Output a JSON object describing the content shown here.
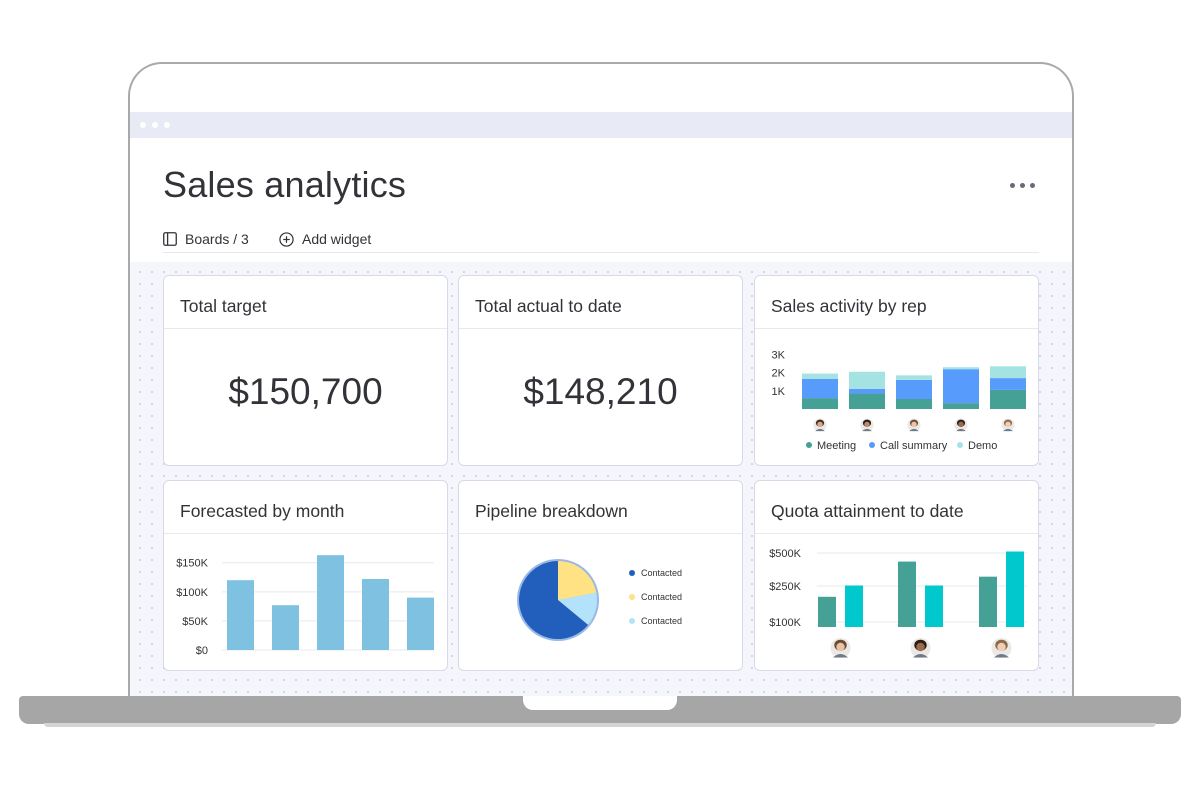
{
  "page": {
    "title": "Sales analytics",
    "toolbar": {
      "boards_label": "Boards / 3",
      "add_widget_label": "Add widget"
    }
  },
  "widgets": {
    "total_target": {
      "title": "Total target",
      "value": "$150,700"
    },
    "total_actual": {
      "title": "Total actual to date",
      "value": "$148,210"
    },
    "sales_activity": {
      "title": "Sales activity by rep"
    },
    "forecasted": {
      "title": "Forecasted by month"
    },
    "pipeline": {
      "title": "Pipeline breakdown"
    },
    "quota": {
      "title": "Quota attainment to date"
    }
  },
  "chart_data": [
    {
      "type": "bar",
      "stacked": true,
      "title": "Sales activity by rep",
      "categories": [
        "rep-1",
        "rep-2",
        "rep-3",
        "rep-4",
        "rep-5"
      ],
      "y_ticks": [
        "3K",
        "2K",
        "1K"
      ],
      "ylim": [
        0,
        3300
      ],
      "series": [
        {
          "name": "Meeting",
          "color": "#45a195",
          "values": [
            600,
            850,
            550,
            320,
            1050
          ]
        },
        {
          "name": "Call summary",
          "color": "#579bfc",
          "values": [
            1050,
            250,
            1050,
            1870,
            650
          ]
        },
        {
          "name": "Demo",
          "color": "#a5e3e3",
          "values": [
            300,
            950,
            250,
            110,
            650
          ]
        }
      ],
      "legend": "bottom"
    },
    {
      "type": "bar",
      "title": "Forecasted by month",
      "categories": [
        "1",
        "2",
        "3",
        "4",
        "5"
      ],
      "values": [
        120000,
        77000,
        163000,
        122000,
        90000
      ],
      "y_ticks": [
        "$150K",
        "$100K",
        "$50K",
        "$0"
      ],
      "ylim": [
        0,
        165000
      ],
      "color": "#7fc1e0",
      "grid": true
    },
    {
      "type": "pie",
      "title": "Pipeline breakdown",
      "slices": [
        {
          "label": "Contacted",
          "value": 64,
          "color": "#225fbd"
        },
        {
          "label": "Contacted",
          "value": 22,
          "color": "#ffe283"
        },
        {
          "label": "Contacted",
          "value": 14,
          "color": "#b3e3fb"
        }
      ],
      "legend": "right"
    },
    {
      "type": "bar",
      "title": "Quota attainment to date",
      "categories": [
        "rep-1",
        "rep-2",
        "rep-3"
      ],
      "y_ticks": [
        "$500K",
        "$250K",
        "$100K"
      ],
      "series": [
        {
          "name": "",
          "color": "#45a195",
          "values": [
            240000,
            520000,
            400000
          ]
        },
        {
          "name": "",
          "color": "#00c8cc",
          "values": [
            330000,
            330000,
            600000
          ]
        }
      ],
      "grid": true
    }
  ]
}
